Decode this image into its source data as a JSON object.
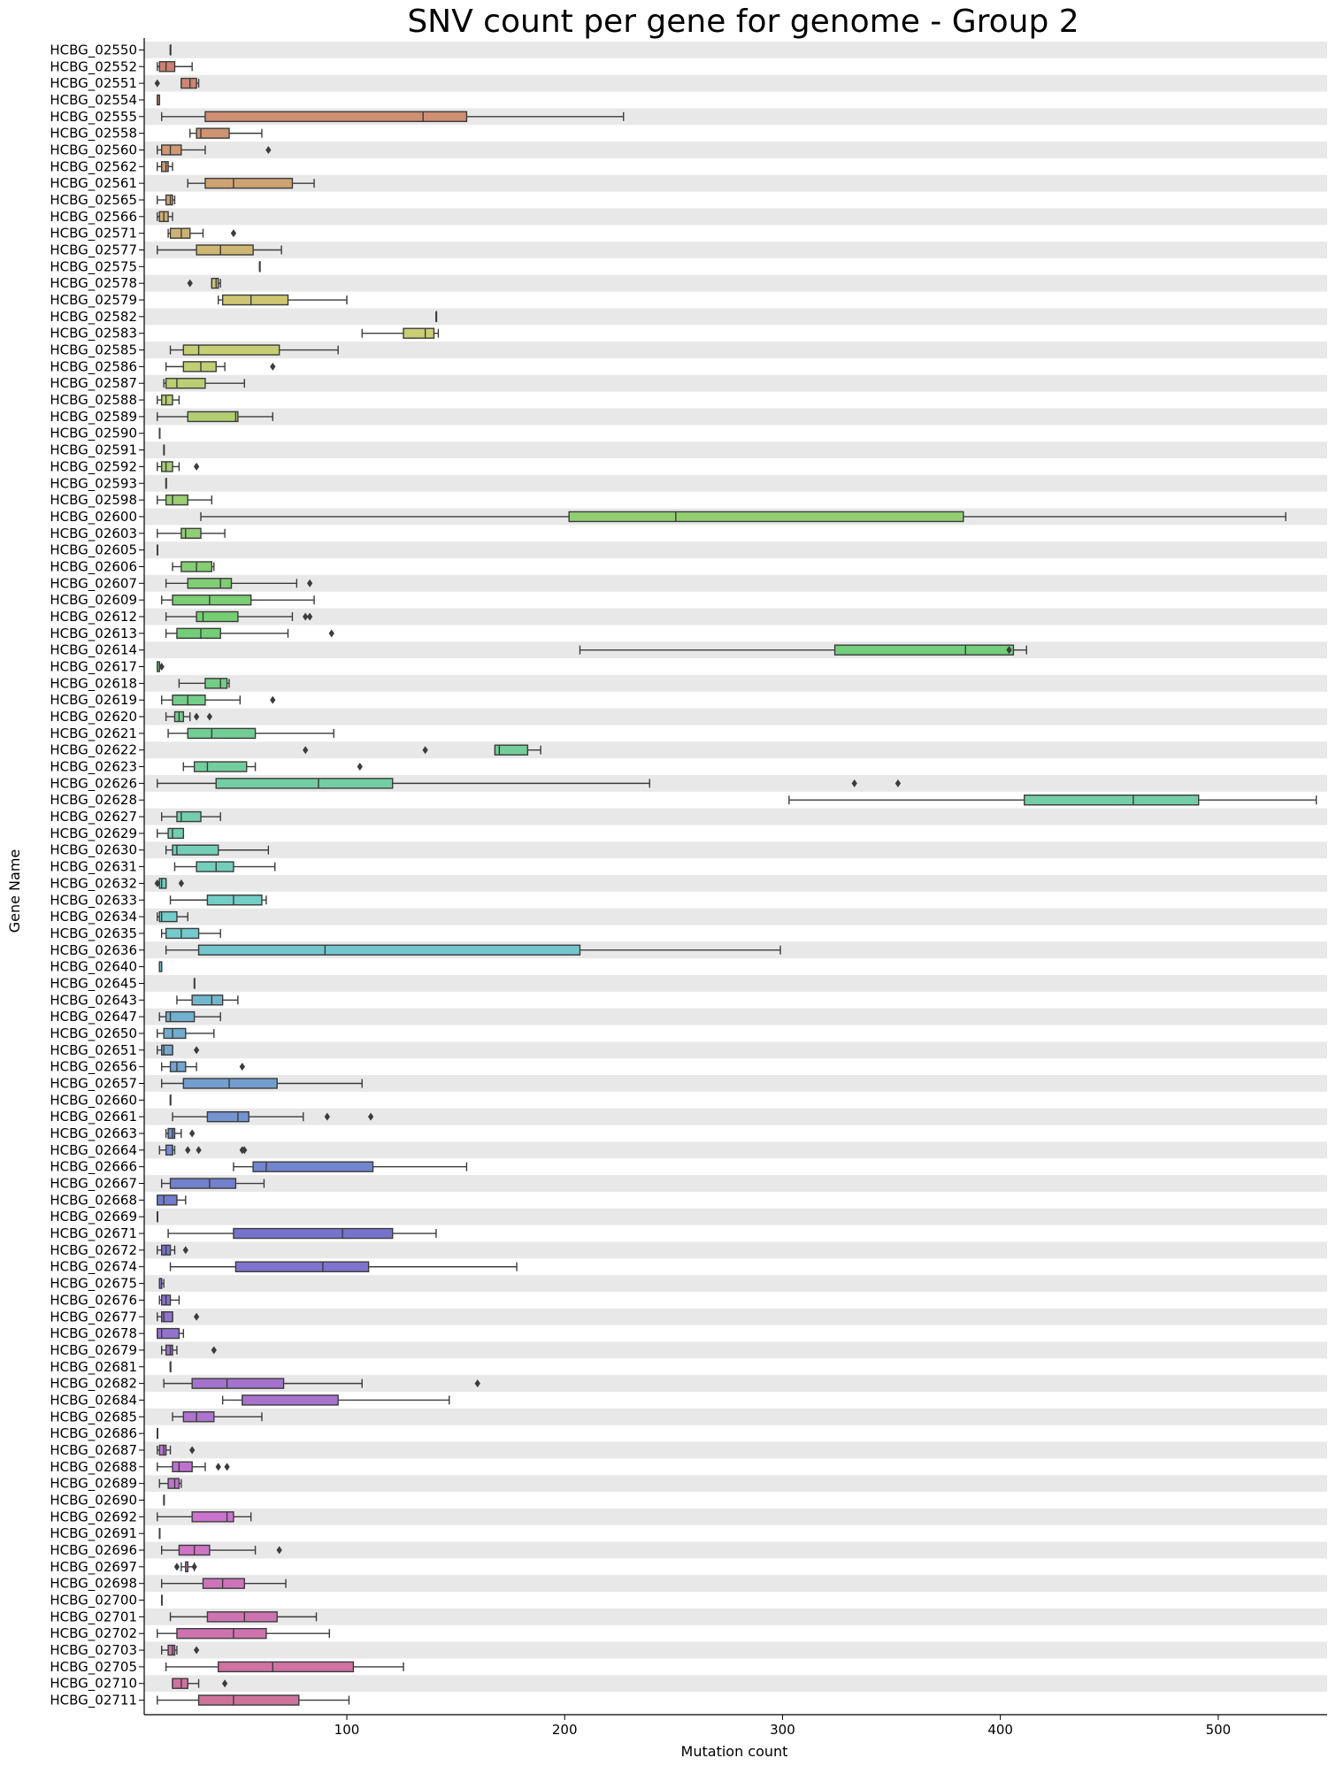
{
  "chart_data": {
    "type": "boxplot",
    "orientation": "horizontal",
    "title": "SNV count per gene for genome - Group 2",
    "xlabel": "Mutation count",
    "ylabel": "Gene Name",
    "xlim": [
      7,
      550
    ],
    "xticks": [
      100,
      200,
      300,
      400,
      500
    ],
    "stripes": "alternating light gray rows",
    "palette": "husl gradient (salmon → gold → olive → green → teal → blue → violet → pink)",
    "genes": [
      {
        "name": "HCBG_02550",
        "stats": [
          19,
          19,
          19,
          19,
          19
        ],
        "outliers": []
      },
      {
        "name": "HCBG_02552",
        "stats": [
          13,
          14,
          17,
          21,
          29
        ],
        "outliers": []
      },
      {
        "name": "HCBG_02551",
        "stats": [
          24,
          24,
          28,
          31,
          32
        ],
        "outliers": [
          13
        ]
      },
      {
        "name": "HCBG_02554",
        "stats": [
          13,
          13,
          13,
          14,
          14
        ],
        "outliers": []
      },
      {
        "name": "HCBG_02555",
        "stats": [
          15,
          35,
          135,
          155,
          227
        ],
        "outliers": []
      },
      {
        "name": "HCBG_02558",
        "stats": [
          28,
          31,
          33,
          46,
          61
        ],
        "outliers": []
      },
      {
        "name": "HCBG_02560",
        "stats": [
          13,
          15,
          19,
          24,
          35
        ],
        "outliers": [
          64
        ]
      },
      {
        "name": "HCBG_02562",
        "stats": [
          13,
          15,
          17,
          18,
          20
        ],
        "outliers": []
      },
      {
        "name": "HCBG_02561",
        "stats": [
          27,
          35,
          48,
          75,
          85
        ],
        "outliers": []
      },
      {
        "name": "HCBG_02565",
        "stats": [
          13,
          17,
          19,
          20,
          21
        ],
        "outliers": []
      },
      {
        "name": "HCBG_02566",
        "stats": [
          13,
          14,
          16,
          18,
          20
        ],
        "outliers": []
      },
      {
        "name": "HCBG_02571",
        "stats": [
          18,
          19,
          24,
          28,
          34
        ],
        "outliers": [
          48
        ]
      },
      {
        "name": "HCBG_02577",
        "stats": [
          13,
          31,
          42,
          57,
          70
        ],
        "outliers": []
      },
      {
        "name": "HCBG_02575",
        "stats": [
          60,
          60,
          60,
          60,
          60
        ],
        "outliers": []
      },
      {
        "name": "HCBG_02578",
        "stats": [
          38,
          38,
          40,
          41,
          42
        ],
        "outliers": [
          28
        ]
      },
      {
        "name": "HCBG_02579",
        "stats": [
          41,
          43,
          56,
          73,
          100
        ],
        "outliers": []
      },
      {
        "name": "HCBG_02582",
        "stats": [
          141,
          141,
          141,
          141,
          141
        ],
        "outliers": []
      },
      {
        "name": "HCBG_02583",
        "stats": [
          107,
          126,
          136,
          140,
          142
        ],
        "outliers": []
      },
      {
        "name": "HCBG_02585",
        "stats": [
          19,
          25,
          32,
          69,
          96
        ],
        "outliers": []
      },
      {
        "name": "HCBG_02586",
        "stats": [
          17,
          25,
          33,
          40,
          44
        ],
        "outliers": [
          66
        ]
      },
      {
        "name": "HCBG_02587",
        "stats": [
          16,
          17,
          22,
          35,
          53
        ],
        "outliers": []
      },
      {
        "name": "HCBG_02588",
        "stats": [
          13,
          15,
          17,
          20,
          23
        ],
        "outliers": []
      },
      {
        "name": "HCBG_02589",
        "stats": [
          13,
          27,
          49,
          50,
          66
        ],
        "outliers": []
      },
      {
        "name": "HCBG_02590",
        "stats": [
          14,
          14,
          14,
          14,
          14
        ],
        "outliers": []
      },
      {
        "name": "HCBG_02591",
        "stats": [
          16,
          16,
          16,
          16,
          16
        ],
        "outliers": []
      },
      {
        "name": "HCBG_02592",
        "stats": [
          13,
          15,
          17,
          20,
          23
        ],
        "outliers": [
          31
        ]
      },
      {
        "name": "HCBG_02593",
        "stats": [
          17,
          17,
          17,
          17,
          17
        ],
        "outliers": []
      },
      {
        "name": "HCBG_02598",
        "stats": [
          13,
          17,
          20,
          27,
          38
        ],
        "outliers": []
      },
      {
        "name": "HCBG_02600",
        "stats": [
          33,
          202,
          251,
          383,
          531
        ],
        "outliers": []
      },
      {
        "name": "HCBG_02603",
        "stats": [
          13,
          24,
          26,
          33,
          44
        ],
        "outliers": []
      },
      {
        "name": "HCBG_02605",
        "stats": [
          13,
          13,
          13,
          13,
          13
        ],
        "outliers": []
      },
      {
        "name": "HCBG_02606",
        "stats": [
          20,
          24,
          31,
          38,
          39
        ],
        "outliers": []
      },
      {
        "name": "HCBG_02607",
        "stats": [
          17,
          27,
          42,
          47,
          77
        ],
        "outliers": [
          83
        ]
      },
      {
        "name": "HCBG_02609",
        "stats": [
          15,
          20,
          37,
          56,
          85
        ],
        "outliers": []
      },
      {
        "name": "HCBG_02612",
        "stats": [
          17,
          31,
          34,
          50,
          75
        ],
        "outliers": [
          81,
          83
        ]
      },
      {
        "name": "HCBG_02613",
        "stats": [
          17,
          22,
          33,
          42,
          73
        ],
        "outliers": [
          93
        ]
      },
      {
        "name": "HCBG_02614",
        "stats": [
          207,
          324,
          384,
          406,
          412
        ],
        "outliers": [
          404
        ]
      },
      {
        "name": "HCBG_02617",
        "stats": [
          13,
          13,
          14,
          14,
          14
        ],
        "outliers": [
          15
        ]
      },
      {
        "name": "HCBG_02618",
        "stats": [
          23,
          35,
          42,
          45,
          46
        ],
        "outliers": []
      },
      {
        "name": "HCBG_02619",
        "stats": [
          15,
          20,
          27,
          35,
          51
        ],
        "outliers": [
          66
        ]
      },
      {
        "name": "HCBG_02620",
        "stats": [
          17,
          21,
          23,
          25,
          28
        ],
        "outliers": [
          31,
          37
        ]
      },
      {
        "name": "HCBG_02621",
        "stats": [
          18,
          27,
          38,
          58,
          94
        ],
        "outliers": []
      },
      {
        "name": "HCBG_02622",
        "stats": [
          168,
          168,
          170,
          183,
          189
        ],
        "outliers": [
          81,
          136
        ]
      },
      {
        "name": "HCBG_02623",
        "stats": [
          25,
          30,
          36,
          54,
          58
        ],
        "outliers": [
          106
        ]
      },
      {
        "name": "HCBG_02626",
        "stats": [
          13,
          40,
          87,
          121,
          239
        ],
        "outliers": [
          333,
          353
        ]
      },
      {
        "name": "HCBG_02628",
        "stats": [
          303,
          411,
          461,
          491,
          545
        ],
        "outliers": []
      },
      {
        "name": "HCBG_02627",
        "stats": [
          15,
          22,
          24,
          33,
          42
        ],
        "outliers": []
      },
      {
        "name": "HCBG_02629",
        "stats": [
          13,
          18,
          20,
          25,
          25
        ],
        "outliers": []
      },
      {
        "name": "HCBG_02630",
        "stats": [
          17,
          20,
          22,
          41,
          64
        ],
        "outliers": []
      },
      {
        "name": "HCBG_02631",
        "stats": [
          21,
          31,
          40,
          48,
          67
        ],
        "outliers": []
      },
      {
        "name": "HCBG_02632",
        "stats": [
          14,
          14,
          15,
          17,
          17
        ],
        "outliers": [
          13,
          24
        ]
      },
      {
        "name": "HCBG_02633",
        "stats": [
          19,
          36,
          48,
          61,
          63
        ],
        "outliers": []
      },
      {
        "name": "HCBG_02634",
        "stats": [
          13,
          14,
          15,
          22,
          27
        ],
        "outliers": []
      },
      {
        "name": "HCBG_02635",
        "stats": [
          15,
          17,
          24,
          32,
          42
        ],
        "outliers": []
      },
      {
        "name": "HCBG_02636",
        "stats": [
          17,
          32,
          90,
          207,
          299
        ],
        "outliers": []
      },
      {
        "name": "HCBG_02640",
        "stats": [
          14,
          14,
          15,
          15,
          15
        ],
        "outliers": []
      },
      {
        "name": "HCBG_02645",
        "stats": [
          30,
          30,
          30,
          30,
          30
        ],
        "outliers": []
      },
      {
        "name": "HCBG_02643",
        "stats": [
          22,
          29,
          38,
          43,
          50
        ],
        "outliers": []
      },
      {
        "name": "HCBG_02647",
        "stats": [
          14,
          17,
          19,
          30,
          42
        ],
        "outliers": []
      },
      {
        "name": "HCBG_02650",
        "stats": [
          13,
          16,
          20,
          26,
          39
        ],
        "outliers": []
      },
      {
        "name": "HCBG_02651",
        "stats": [
          13,
          15,
          16,
          20,
          20
        ],
        "outliers": [
          31
        ]
      },
      {
        "name": "HCBG_02656",
        "stats": [
          15,
          19,
          22,
          26,
          31
        ],
        "outliers": [
          52
        ]
      },
      {
        "name": "HCBG_02657",
        "stats": [
          15,
          25,
          46,
          68,
          107
        ],
        "outliers": []
      },
      {
        "name": "HCBG_02660",
        "stats": [
          19,
          19,
          19,
          19,
          19
        ],
        "outliers": []
      },
      {
        "name": "HCBG_02661",
        "stats": [
          20,
          36,
          50,
          55,
          80
        ],
        "outliers": [
          91,
          111
        ]
      },
      {
        "name": "HCBG_02663",
        "stats": [
          17,
          18,
          20,
          21,
          24
        ],
        "outliers": [
          29
        ]
      },
      {
        "name": "HCBG_02664",
        "stats": [
          14,
          17,
          20,
          20,
          21
        ],
        "outliers": [
          27,
          32,
          52,
          53
        ]
      },
      {
        "name": "HCBG_02666",
        "stats": [
          48,
          57,
          63,
          112,
          155
        ],
        "outliers": []
      },
      {
        "name": "HCBG_02667",
        "stats": [
          15,
          19,
          37,
          49,
          62
        ],
        "outliers": []
      },
      {
        "name": "HCBG_02668",
        "stats": [
          13,
          13,
          16,
          22,
          26
        ],
        "outliers": []
      },
      {
        "name": "HCBG_02669",
        "stats": [
          13,
          13,
          13,
          13,
          13
        ],
        "outliers": []
      },
      {
        "name": "HCBG_02671",
        "stats": [
          18,
          48,
          98,
          121,
          141
        ],
        "outliers": []
      },
      {
        "name": "HCBG_02672",
        "stats": [
          13,
          15,
          17,
          19,
          21
        ],
        "outliers": [
          26
        ]
      },
      {
        "name": "HCBG_02674",
        "stats": [
          19,
          49,
          89,
          110,
          178
        ],
        "outliers": []
      },
      {
        "name": "HCBG_02675",
        "stats": [
          14,
          14,
          15,
          15,
          16
        ],
        "outliers": []
      },
      {
        "name": "HCBG_02676",
        "stats": [
          14,
          15,
          17,
          19,
          23
        ],
        "outliers": []
      },
      {
        "name": "HCBG_02677",
        "stats": [
          13,
          15,
          16,
          20,
          20
        ],
        "outliers": [
          31
        ]
      },
      {
        "name": "HCBG_02678",
        "stats": [
          13,
          13,
          15,
          23,
          25
        ],
        "outliers": []
      },
      {
        "name": "HCBG_02679",
        "stats": [
          15,
          17,
          19,
          20,
          22
        ],
        "outliers": [
          39
        ]
      },
      {
        "name": "HCBG_02681",
        "stats": [
          19,
          19,
          19,
          19,
          19
        ],
        "outliers": []
      },
      {
        "name": "HCBG_02682",
        "stats": [
          16,
          29,
          45,
          71,
          107
        ],
        "outliers": [
          160
        ]
      },
      {
        "name": "HCBG_02684",
        "stats": [
          43,
          52,
          52,
          96,
          147
        ],
        "outliers": []
      },
      {
        "name": "HCBG_02685",
        "stats": [
          20,
          25,
          31,
          39,
          61
        ],
        "outliers": []
      },
      {
        "name": "HCBG_02686",
        "stats": [
          13,
          13,
          13,
          13,
          13
        ],
        "outliers": []
      },
      {
        "name": "HCBG_02687",
        "stats": [
          13,
          14,
          16,
          17,
          19
        ],
        "outliers": [
          29
        ]
      },
      {
        "name": "HCBG_02688",
        "stats": [
          13,
          20,
          23,
          29,
          35
        ],
        "outliers": [
          41,
          45
        ]
      },
      {
        "name": "HCBG_02689",
        "stats": [
          14,
          18,
          21,
          23,
          24
        ],
        "outliers": []
      },
      {
        "name": "HCBG_02690",
        "stats": [
          16,
          16,
          16,
          16,
          16
        ],
        "outliers": []
      },
      {
        "name": "HCBG_02692",
        "stats": [
          13,
          29,
          45,
          48,
          56
        ],
        "outliers": []
      },
      {
        "name": "HCBG_02691",
        "stats": [
          14,
          14,
          14,
          14,
          14
        ],
        "outliers": []
      },
      {
        "name": "HCBG_02696",
        "stats": [
          15,
          23,
          30,
          37,
          58
        ],
        "outliers": [
          69
        ]
      },
      {
        "name": "HCBG_02697",
        "stats": [
          24,
          26,
          27,
          27,
          30
        ],
        "outliers": [
          22,
          30
        ]
      },
      {
        "name": "HCBG_02698",
        "stats": [
          15,
          34,
          43,
          53,
          72
        ],
        "outliers": []
      },
      {
        "name": "HCBG_02700",
        "stats": [
          15,
          15,
          15,
          15,
          15
        ],
        "outliers": []
      },
      {
        "name": "HCBG_02701",
        "stats": [
          19,
          36,
          53,
          68,
          86
        ],
        "outliers": []
      },
      {
        "name": "HCBG_02702",
        "stats": [
          13,
          22,
          48,
          63,
          92
        ],
        "outliers": []
      },
      {
        "name": "HCBG_02703",
        "stats": [
          15,
          18,
          20,
          21,
          22
        ],
        "outliers": [
          31
        ]
      },
      {
        "name": "HCBG_02705",
        "stats": [
          17,
          41,
          66,
          103,
          126
        ],
        "outliers": []
      },
      {
        "name": "HCBG_02710",
        "stats": [
          20,
          20,
          24,
          27,
          32
        ],
        "outliers": [
          44
        ]
      },
      {
        "name": "HCBG_02711",
        "stats": [
          13,
          32,
          48,
          78,
          101
        ],
        "outliers": []
      }
    ]
  }
}
